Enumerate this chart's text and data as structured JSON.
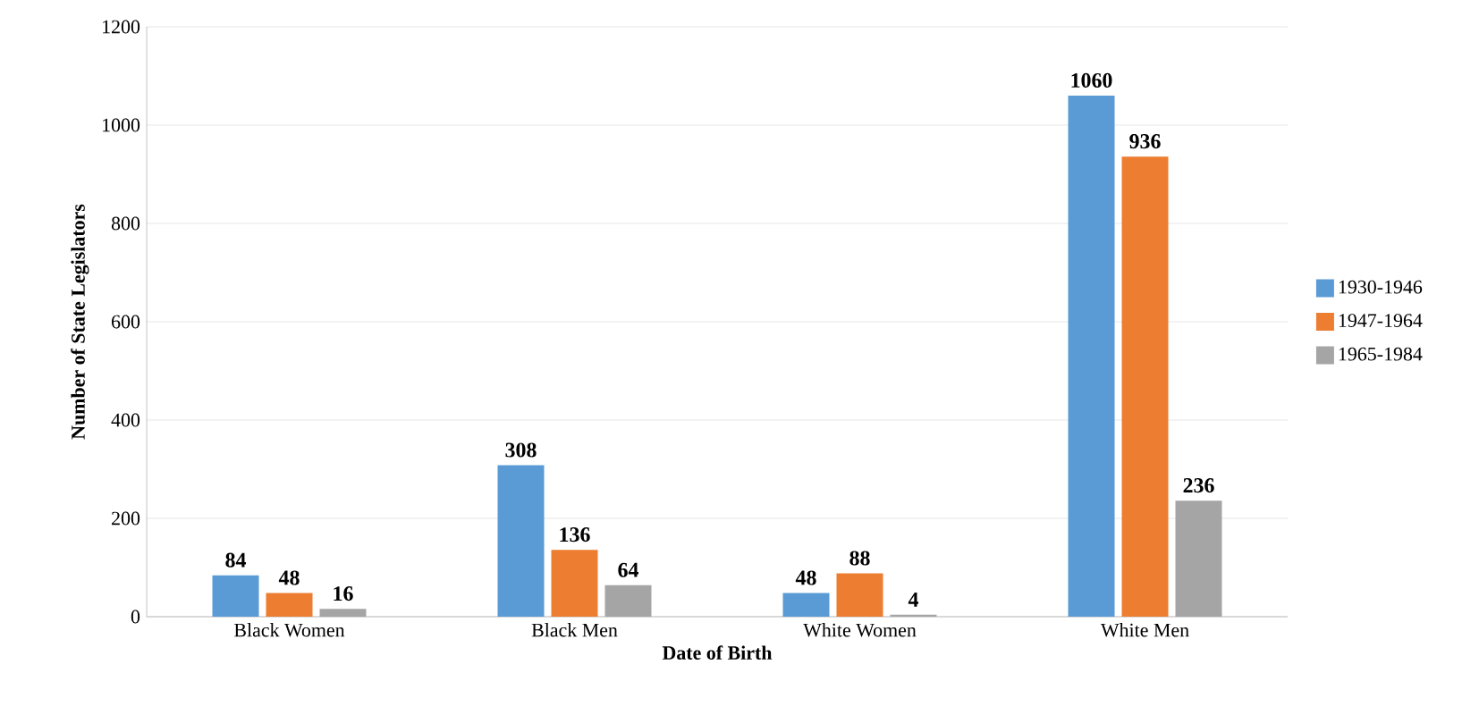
{
  "chart_data": {
    "type": "bar",
    "xlabel": "Date of Birth",
    "ylabel": "Number of State Legislators",
    "categories": [
      "Black Women",
      "Black Men",
      "White Women",
      "White Men"
    ],
    "series": [
      {
        "name": "1930-1946",
        "color": "#5b9bd5",
        "values": [
          84,
          308,
          48,
          1060
        ]
      },
      {
        "name": "1947-1964",
        "color": "#ed7d31",
        "values": [
          48,
          136,
          88,
          936
        ]
      },
      {
        "name": "1965-1984",
        "color": "#a5a5a5",
        "values": [
          16,
          64,
          4,
          236
        ]
      }
    ],
    "ylim": [
      0,
      1200
    ],
    "yticks": [
      0,
      200,
      400,
      600,
      800,
      1000,
      1200
    ],
    "grid": "y",
    "legend": "right",
    "data_labels": true
  }
}
